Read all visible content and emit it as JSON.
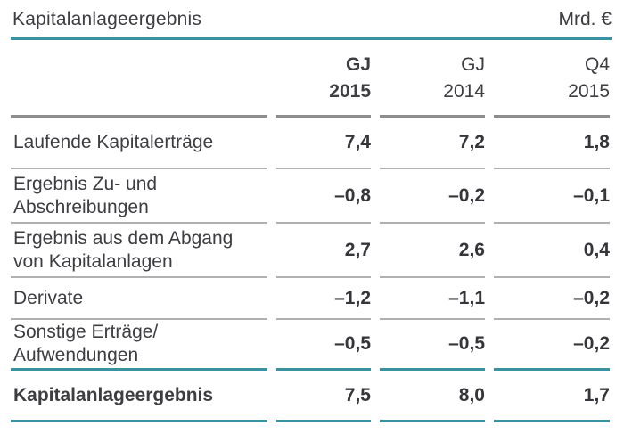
{
  "page": {
    "title": "Kapitalanlageergebnis",
    "unit_label": "Mrd. €"
  },
  "table": {
    "column_headers": [
      "GJ\n2015",
      "GJ\n2014",
      "Q4\n2015"
    ],
    "rows": [
      {
        "label": "Laufende Kapitalerträge",
        "values": [
          "7,4",
          "7,2",
          "1,8"
        ]
      },
      {
        "label": "Ergebnis Zu- und\nAbschreibungen",
        "values": [
          "–0,8",
          "–0,2",
          "–0,1"
        ]
      },
      {
        "label": "Ergebnis aus dem Abgang\nvon Kapitalanlagen",
        "values": [
          "2,7",
          "2,6",
          "0,4"
        ]
      },
      {
        "label": "Derivate",
        "values": [
          "–1,2",
          "–1,1",
          "–0,2"
        ]
      },
      {
        "label": "Sonstige Erträge/\nAufwendungen",
        "values": [
          "–0,5",
          "–0,5",
          "–0,2"
        ]
      },
      {
        "label": "Kapitalanlageergebnis",
        "values": [
          "7,5",
          "8,0",
          "1,7"
        ]
      }
    ]
  },
  "colors": {
    "accent_teal": "#38929f",
    "text": "#3d3d42",
    "header_rule_gray": "#8e8e8e",
    "row_rule_gray": "#b1b1b1"
  },
  "chart_data": {
    "type": "table",
    "title": "Kapitalanlageergebnis",
    "unit": "Mrd. €",
    "columns": [
      "GJ 2015",
      "GJ 2014",
      "Q4 2015"
    ],
    "row_labels": [
      "Laufende Kapitalerträge",
      "Ergebnis Zu- und Abschreibungen",
      "Ergebnis aus dem Abgang von Kapitalanlagen",
      "Derivate",
      "Sonstige Erträge/Aufwendungen",
      "Kapitalanlageergebnis"
    ],
    "values": [
      [
        7.4,
        7.2,
        1.8
      ],
      [
        -0.8,
        -0.2,
        -0.1
      ],
      [
        2.7,
        2.6,
        0.4
      ],
      [
        -1.2,
        -1.1,
        -0.2
      ],
      [
        -0.5,
        -0.5,
        -0.2
      ],
      [
        7.5,
        8.0,
        1.7
      ]
    ],
    "notes": "Financial results table; last row is the total and is emphasized with teal rules; 'GJ 2015' column is bold."
  }
}
